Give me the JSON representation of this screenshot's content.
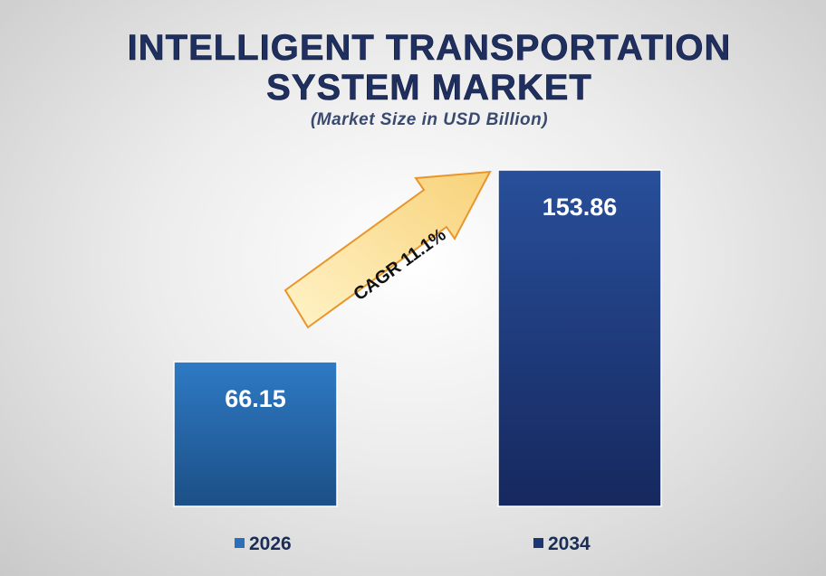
{
  "chart_data": {
    "type": "bar",
    "title_lines": [
      "INTELLIGENT TRANSPORTATION",
      "SYSTEM MARKET"
    ],
    "subtitle": "(Market Size in USD Billion)",
    "categories": [
      "2026",
      "2034"
    ],
    "values": [
      66.15,
      153.86
    ],
    "value_labels": [
      "66.15",
      "153.86"
    ],
    "annotation": "CAGR 11.1%",
    "legend_position": "bottom",
    "grid": false,
    "colors": {
      "bar_2026_top": "#2e7ac4",
      "bar_2026_bottom": "#1c4f86",
      "bar_2034_top": "#284f9a",
      "bar_2034_bottom": "#16285e",
      "arrow_fill": "#fce6a0",
      "arrow_stroke": "#e8962b",
      "legend_2026": "#2b6fb8",
      "legend_2034": "#1c3573"
    }
  }
}
